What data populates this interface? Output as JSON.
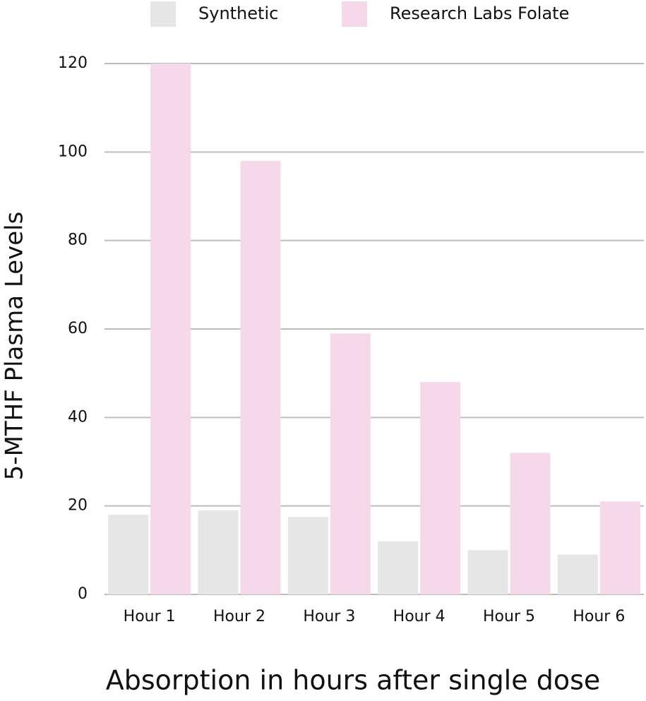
{
  "chart_data": {
    "type": "bar",
    "x_label": "Absorption in hours after single dose",
    "y_label": "5-MTHF Plasma Levels",
    "categories": [
      "Hour 1",
      "Hour 2",
      "Hour 3",
      "Hour 4",
      "Hour 5",
      "Hour 6"
    ],
    "series": [
      {
        "name": "Synthetic",
        "color": "#e6e6e6",
        "values": [
          18,
          19,
          17.5,
          12,
          10,
          9
        ]
      },
      {
        "name": "Research Labs Folate",
        "color": "#f5d8ea",
        "values": [
          120,
          98,
          59,
          48,
          32,
          21
        ]
      }
    ],
    "ylim": [
      0,
      120
    ],
    "yticks": [
      0,
      20,
      40,
      60,
      80,
      100,
      120
    ],
    "grid": true,
    "legend": "top"
  }
}
